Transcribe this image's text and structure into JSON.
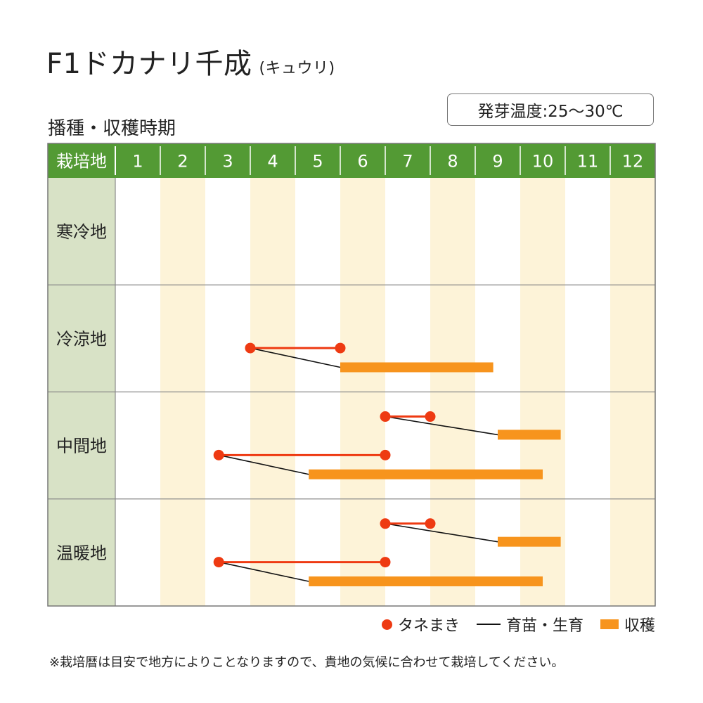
{
  "title": "F1ドカナリ千成",
  "title_sub": "(キュウリ)",
  "temperature_label": "発芽温度:25〜30℃",
  "section_title": "播種・収穫時期",
  "legend": {
    "sowing": "タネまき",
    "raising": "育苗・生育",
    "harvest": "収穫"
  },
  "note": "※栽培暦は目安で地方によりことなりますので、貴地の気候に合わせて栽培してください。",
  "colors": {
    "header_green": "#539a34",
    "region_bg": "#d8e2c6",
    "stripe": "#fdf3d8",
    "sowing_red": "#ee3a12",
    "harvest_orange": "#f7941d",
    "line_black": "#111111"
  },
  "chart_data": {
    "type": "gantt",
    "header_label": "栽培地",
    "months": [
      "1",
      "2",
      "3",
      "4",
      "5",
      "6",
      "7",
      "8",
      "9",
      "10",
      "11",
      "12"
    ],
    "regions": [
      {
        "name": "寒冷地",
        "schedules": []
      },
      {
        "name": "冷涼地",
        "schedules": [
          {
            "sow_start": 4.0,
            "sow_end": 6.0,
            "harvest_start": 6.0,
            "harvest_end": 9.4
          }
        ]
      },
      {
        "name": "中間地",
        "schedules": [
          {
            "sow_start": 7.0,
            "sow_end": 8.0,
            "harvest_start": 9.5,
            "harvest_end": 10.9
          },
          {
            "sow_start": 3.3,
            "sow_end": 7.0,
            "harvest_start": 5.3,
            "harvest_end": 10.5
          }
        ]
      },
      {
        "name": "温暖地",
        "schedules": [
          {
            "sow_start": 7.0,
            "sow_end": 8.0,
            "harvest_start": 9.5,
            "harvest_end": 10.9
          },
          {
            "sow_start": 3.3,
            "sow_end": 7.0,
            "harvest_start": 5.3,
            "harvest_end": 10.5
          }
        ]
      }
    ]
  }
}
